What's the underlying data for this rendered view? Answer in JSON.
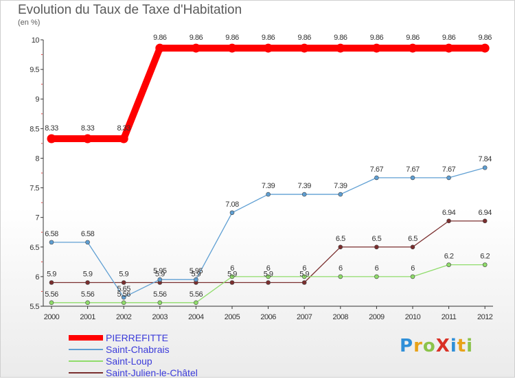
{
  "title": "Evolution du Taux de Taxe d'Habitation",
  "subtitle": "(en %)",
  "logo": {
    "letters": [
      {
        "ch": "P",
        "color": "#2f8fd8"
      },
      {
        "ch": "r",
        "color": "#e8a219"
      },
      {
        "ch": "o",
        "color": "#8bc34a"
      },
      {
        "ch": "X",
        "color": "#d93025"
      },
      {
        "ch": "i",
        "color": "#2f8fd8"
      },
      {
        "ch": "t",
        "color": "#e8a219"
      },
      {
        "ch": "i",
        "color": "#8bc34a"
      }
    ]
  },
  "chart_data": {
    "type": "line",
    "title": "Evolution du Taux de Taxe d'Habitation",
    "ylabel": "(en %)",
    "ylim": [
      5.5,
      10
    ],
    "yticks": [
      "5.5",
      "6",
      "6.5",
      "7",
      "7.5",
      "8",
      "8.5",
      "9",
      "9.5",
      "10"
    ],
    "x": [
      "2000",
      "2001",
      "2002",
      "2003",
      "2004",
      "2005",
      "2006",
      "2007",
      "2008",
      "2009",
      "2010",
      "2011",
      "2012"
    ],
    "grid": false,
    "legend_position": "bottom-left",
    "series": [
      {
        "name": "PIERREFITTE",
        "color": "#ff0000",
        "values": [
          8.33,
          8.33,
          8.33,
          9.86,
          9.86,
          9.86,
          9.86,
          9.86,
          9.86,
          9.86,
          9.86,
          9.86,
          9.86
        ],
        "labels": [
          "8.33",
          "8.33",
          "8.33",
          "9.86",
          "9.86",
          "9.86",
          "9.86",
          "9.86",
          "9.86",
          "9.86",
          "9.86",
          "9.86",
          "9.86"
        ]
      },
      {
        "name": "Saint-Chabrais",
        "color": "#5f9fd3",
        "values": [
          6.58,
          6.58,
          5.65,
          5.95,
          5.95,
          7.08,
          7.39,
          7.39,
          7.39,
          7.67,
          7.67,
          7.67,
          7.84
        ],
        "labels": [
          "6.58",
          "6.58",
          "5.65",
          "5.95",
          "5.95",
          "7.08",
          "7.39",
          "7.39",
          "7.39",
          "7.67",
          "7.67",
          "7.67",
          "7.84"
        ]
      },
      {
        "name": "Saint-Loup",
        "color": "#8fdc6a",
        "values": [
          5.56,
          5.56,
          5.56,
          5.56,
          5.56,
          6,
          6,
          6,
          6,
          6,
          6,
          6.2,
          6.2
        ],
        "labels": [
          "5.56",
          "5.56",
          "5.56",
          "5.56",
          "5.56",
          "6",
          "6",
          "6",
          "6",
          "6",
          "6",
          "6.2",
          "6.2"
        ]
      },
      {
        "name": "Saint-Julien-le-Châtel",
        "color": "#7a2e2e",
        "values": [
          5.9,
          5.9,
          5.9,
          5.9,
          5.9,
          5.9,
          5.9,
          5.9,
          6.5,
          6.5,
          6.5,
          6.94,
          6.94
        ],
        "labels": [
          "5.9",
          "5.9",
          "5.9",
          "5.9",
          "5.9",
          "5.9",
          "5.9",
          "5.9",
          "6.5",
          "6.5",
          "6.5",
          "6.94",
          "6.94"
        ]
      }
    ]
  }
}
